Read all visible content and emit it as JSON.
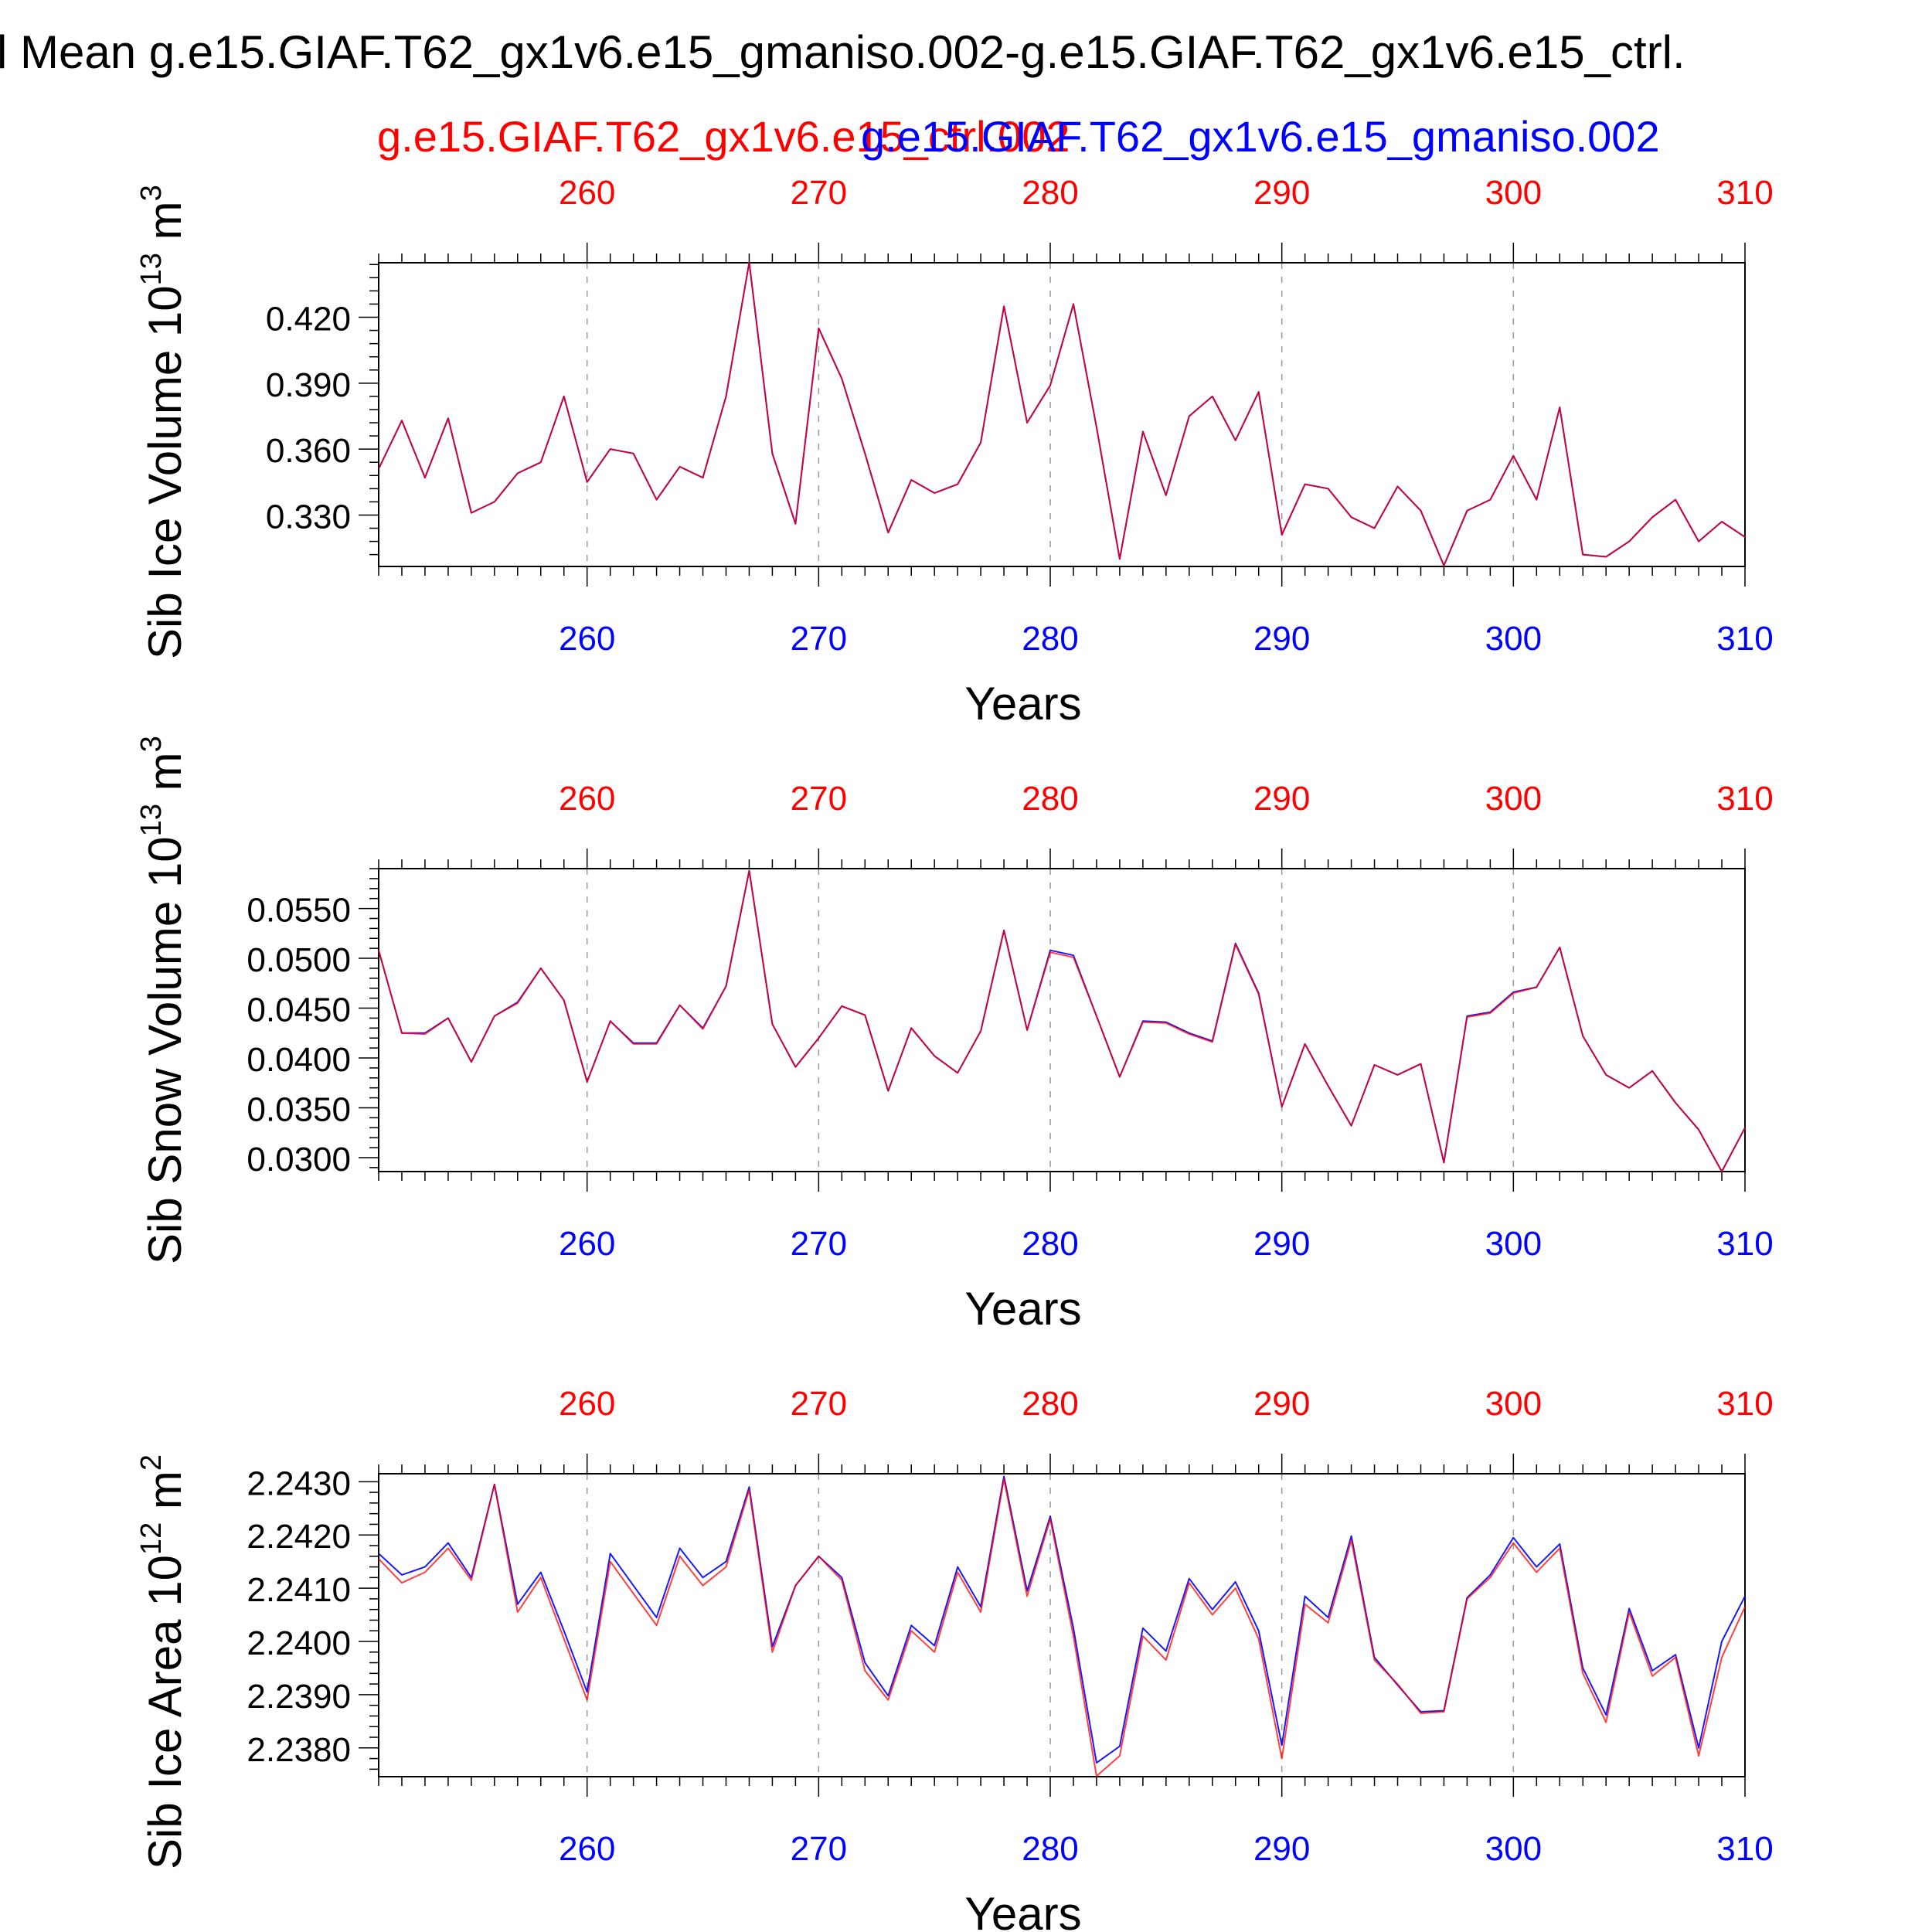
{
  "page": {
    "title": "l Mean g.e15.GIAF.T62_gx1v6.e15_gmaniso.002-g.e15.GIAF.T62_gx1v6.e15_ctrl.",
    "legend_red": "g.e15.GIAF.T62_gx1v6.e15_ctrl.002",
    "legend_blue": "g.e15.GIAF.T62_gx1v6.e15_gmaniso.002",
    "color_red": "#ff0000",
    "color_blue": "#0000ff",
    "color_axis": "#000000"
  },
  "chart_data": [
    {
      "type": "line",
      "title": "",
      "ylabel": "Sib Ice Volume 10^13 m^3",
      "ylabel_text": "Sib Ice Volume 10",
      "ylabel_exp": "13",
      "ylabel_unit": "m",
      "ylabel_unit_exp": "3",
      "xlabel": "Years",
      "xlim": [
        251,
        310
      ],
      "ylim": [
        0.3066,
        0.4448
      ],
      "xticks": [
        260,
        270,
        280,
        290,
        300,
        310
      ],
      "xtick_labels": [
        "260",
        "270",
        "280",
        "290",
        "300",
        "310"
      ],
      "yticks": [
        0.33,
        0.36,
        0.39,
        0.42
      ],
      "ytick_labels": [
        "0.330",
        "0.360",
        "0.390",
        "0.420"
      ],
      "grid": "dashed vertical at major x ticks",
      "x": [
        251,
        252,
        253,
        254,
        255,
        256,
        257,
        258,
        259,
        260,
        261,
        262,
        263,
        264,
        265,
        266,
        267,
        268,
        269,
        270,
        271,
        272,
        273,
        274,
        275,
        276,
        277,
        278,
        279,
        280,
        281,
        282,
        283,
        284,
        285,
        286,
        287,
        288,
        289,
        290,
        291,
        292,
        293,
        294,
        295,
        296,
        297,
        298,
        299,
        300,
        301,
        302,
        303,
        304,
        305,
        306,
        307,
        308,
        309,
        310
      ],
      "series": [
        {
          "name": "g.e15.GIAF.T62_gx1v6.e15_ctrl.002",
          "color": "#ff0000",
          "values": [
            0.351,
            0.373,
            0.347,
            0.374,
            0.331,
            0.336,
            0.349,
            0.354,
            0.384,
            0.345,
            0.36,
            0.358,
            0.337,
            0.352,
            0.347,
            0.384,
            0.445,
            0.358,
            0.326,
            0.415,
            0.392,
            0.358,
            0.322,
            0.346,
            0.34,
            0.344,
            0.363,
            0.425,
            0.372,
            0.389,
            0.426,
            0.37,
            0.31,
            0.368,
            0.339,
            0.375,
            0.384,
            0.364,
            0.386,
            0.321,
            0.344,
            0.342,
            0.329,
            0.324,
            0.343,
            0.332,
            0.307,
            0.332,
            0.337,
            0.357,
            0.337,
            0.379,
            0.312,
            0.311,
            0.318,
            0.329,
            0.337,
            0.318,
            0.327,
            0.32
          ]
        },
        {
          "name": "g.e15.GIAF.T62_gx1v6.e15_gmaniso.002",
          "color": "#0000ff",
          "values": [
            0.351,
            0.373,
            0.347,
            0.374,
            0.331,
            0.336,
            0.349,
            0.354,
            0.384,
            0.345,
            0.36,
            0.358,
            0.337,
            0.352,
            0.347,
            0.384,
            0.445,
            0.358,
            0.326,
            0.415,
            0.392,
            0.358,
            0.322,
            0.346,
            0.34,
            0.344,
            0.363,
            0.425,
            0.372,
            0.389,
            0.426,
            0.37,
            0.31,
            0.368,
            0.339,
            0.375,
            0.384,
            0.364,
            0.386,
            0.321,
            0.344,
            0.342,
            0.329,
            0.324,
            0.343,
            0.332,
            0.307,
            0.332,
            0.337,
            0.357,
            0.337,
            0.379,
            0.312,
            0.311,
            0.318,
            0.329,
            0.337,
            0.318,
            0.327,
            0.32
          ]
        }
      ]
    },
    {
      "type": "line",
      "title": "",
      "ylabel": "Sib Snow Volume 10^13 m^3",
      "ylabel_text": "Sib Snow Volume 10",
      "ylabel_exp": "13",
      "ylabel_unit": "m",
      "ylabel_unit_exp": "3",
      "xlabel": "Years",
      "xlim": [
        251,
        310
      ],
      "ylim": [
        0.0286,
        0.059
      ],
      "xticks": [
        260,
        270,
        280,
        290,
        300,
        310
      ],
      "xtick_labels": [
        "260",
        "270",
        "280",
        "290",
        "300",
        "310"
      ],
      "yticks": [
        0.03,
        0.035,
        0.04,
        0.045,
        0.05,
        0.055
      ],
      "ytick_labels": [
        "0.0300",
        "0.0350",
        "0.0400",
        "0.0450",
        "0.0500",
        "0.0550"
      ],
      "grid": "dashed vertical at major x ticks",
      "x": [
        251,
        252,
        253,
        254,
        255,
        256,
        257,
        258,
        259,
        260,
        261,
        262,
        263,
        264,
        265,
        266,
        267,
        268,
        269,
        270,
        271,
        272,
        273,
        274,
        275,
        276,
        277,
        278,
        279,
        280,
        281,
        282,
        283,
        284,
        285,
        286,
        287,
        288,
        289,
        290,
        291,
        292,
        293,
        294,
        295,
        296,
        297,
        298,
        299,
        300,
        301,
        302,
        303,
        304,
        305,
        306,
        307,
        308,
        309,
        310
      ],
      "series": [
        {
          "name": "g.e15.GIAF.T62_gx1v6.e15_ctrl.002",
          "color": "#ff0000",
          "values": [
            0.0508,
            0.0425,
            0.0424,
            0.044,
            0.0396,
            0.0442,
            0.0455,
            0.049,
            0.0458,
            0.0376,
            0.0437,
            0.0414,
            0.0414,
            0.0453,
            0.0429,
            0.0472,
            0.0588,
            0.0434,
            0.0391,
            0.042,
            0.0452,
            0.0443,
            0.0367,
            0.043,
            0.0402,
            0.0385,
            0.0427,
            0.0528,
            0.0428,
            0.0506,
            0.0501,
            0.0442,
            0.0381,
            0.0436,
            0.0435,
            0.0424,
            0.0416,
            0.0514,
            0.0464,
            0.0351,
            0.0414,
            0.0372,
            0.0332,
            0.0393,
            0.0383,
            0.0394,
            0.0295,
            0.0441,
            0.0445,
            0.0465,
            0.0471,
            0.0511,
            0.0422,
            0.0383,
            0.037,
            0.0387,
            0.0355,
            0.0328,
            0.0286,
            0.033
          ]
        },
        {
          "name": "g.e15.GIAF.T62_gx1v6.e15_gmaniso.002",
          "color": "#0000ff",
          "values": [
            0.0508,
            0.0425,
            0.0425,
            0.044,
            0.0396,
            0.0442,
            0.0456,
            0.049,
            0.0458,
            0.0376,
            0.0437,
            0.0415,
            0.0415,
            0.0453,
            0.043,
            0.0472,
            0.0588,
            0.0434,
            0.0391,
            0.042,
            0.0452,
            0.0443,
            0.0367,
            0.043,
            0.0402,
            0.0385,
            0.0427,
            0.0528,
            0.0428,
            0.0508,
            0.0503,
            0.0442,
            0.0381,
            0.0437,
            0.0436,
            0.0425,
            0.0417,
            0.0515,
            0.0465,
            0.0351,
            0.0414,
            0.0372,
            0.0332,
            0.0393,
            0.0383,
            0.0394,
            0.0295,
            0.0442,
            0.0446,
            0.0466,
            0.0471,
            0.0511,
            0.0422,
            0.0383,
            0.037,
            0.0387,
            0.0355,
            0.0328,
            0.0286,
            0.033
          ]
        }
      ]
    },
    {
      "type": "line",
      "title": "",
      "ylabel": "Sib Ice Area 10^12 m^2",
      "ylabel_text": "Sib Ice Area 10",
      "ylabel_exp": "12",
      "ylabel_unit": "m",
      "ylabel_unit_exp": "2",
      "xlabel": "Years",
      "xlim": [
        251,
        310
      ],
      "ylim": [
        2.23746,
        2.24315
      ],
      "xticks": [
        260,
        270,
        280,
        290,
        300,
        310
      ],
      "xtick_labels": [
        "260",
        "270",
        "280",
        "290",
        "300",
        "310"
      ],
      "yticks": [
        2.238,
        2.239,
        2.24,
        2.241,
        2.242,
        2.243
      ],
      "ytick_labels": [
        "2.2380",
        "2.2390",
        "2.2400",
        "2.2410",
        "2.2420",
        "2.2430"
      ],
      "grid": "dashed vertical at major x ticks",
      "x": [
        251,
        252,
        253,
        254,
        255,
        256,
        257,
        258,
        259,
        260,
        261,
        262,
        263,
        264,
        265,
        266,
        267,
        268,
        269,
        270,
        271,
        272,
        273,
        274,
        275,
        276,
        277,
        278,
        279,
        280,
        281,
        282,
        283,
        284,
        285,
        286,
        287,
        288,
        289,
        290,
        291,
        292,
        293,
        294,
        295,
        296,
        297,
        298,
        299,
        300,
        301,
        302,
        303,
        304,
        305,
        306,
        307,
        308,
        309,
        310
      ],
      "series": [
        {
          "name": "g.e15.GIAF.T62_gx1v6.e15_ctrl.002",
          "color": "#ff0000",
          "values": [
            2.24155,
            2.2411,
            2.2413,
            2.24175,
            2.24115,
            2.24295,
            2.24055,
            2.2412,
            2.24005,
            2.2389,
            2.2415,
            2.2409,
            2.2403,
            2.2416,
            2.24105,
            2.2414,
            2.24285,
            2.2398,
            2.24105,
            2.2416,
            2.24115,
            2.23945,
            2.2389,
            2.2402,
            2.2398,
            2.2413,
            2.24055,
            2.24305,
            2.24085,
            2.2423,
            2.2401,
            2.23747,
            2.23785,
            2.2401,
            2.23965,
            2.2411,
            2.2405,
            2.241,
            2.24005,
            2.2378,
            2.2407,
            2.24035,
            2.2419,
            2.23965,
            2.2392,
            2.23865,
            2.23868,
            2.2408,
            2.2412,
            2.24185,
            2.2413,
            2.24175,
            2.2394,
            2.23848,
            2.24055,
            2.23935,
            2.2397,
            2.23785,
            2.2397,
            2.24065
          ]
        },
        {
          "name": "g.e15.GIAF.T62_gx1v6.e15_gmaniso.002",
          "color": "#0000ff",
          "values": [
            2.24165,
            2.24125,
            2.2414,
            2.24185,
            2.2412,
            2.24295,
            2.2407,
            2.2413,
            2.2402,
            2.23905,
            2.24165,
            2.24105,
            2.24045,
            2.24175,
            2.2412,
            2.2415,
            2.2429,
            2.2399,
            2.24105,
            2.2416,
            2.2412,
            2.2396,
            2.23898,
            2.2403,
            2.23992,
            2.2414,
            2.24065,
            2.2431,
            2.24095,
            2.24235,
            2.24025,
            2.23772,
            2.23803,
            2.24025,
            2.23982,
            2.24118,
            2.2406,
            2.24112,
            2.2402,
            2.23805,
            2.24085,
            2.24045,
            2.24198,
            2.2397,
            2.23918,
            2.23868,
            2.2387,
            2.24082,
            2.24125,
            2.24195,
            2.2414,
            2.24183,
            2.2395,
            2.23862,
            2.24062,
            2.23945,
            2.23975,
            2.238,
            2.24,
            2.24085
          ]
        }
      ]
    }
  ]
}
